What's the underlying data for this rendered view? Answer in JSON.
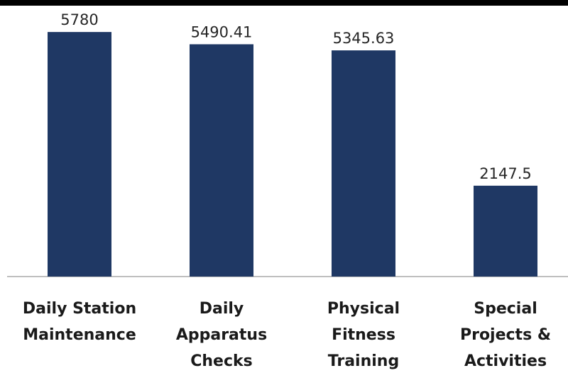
{
  "chart_data": {
    "type": "bar",
    "categories": [
      [
        "Daily Station",
        "Maintenance"
      ],
      [
        "Daily",
        "Apparatus",
        "Checks"
      ],
      [
        "Physical",
        "Fitness",
        "Training"
      ],
      [
        "Special",
        "Projects &",
        "Activities"
      ]
    ],
    "values": [
      5780,
      5490.41,
      5345.63,
      2147.5
    ],
    "value_labels": [
      "5780",
      "5490.41",
      "5345.63",
      "2147.5"
    ],
    "bar_color": "#1f3864",
    "axis_color": "#bfbfbf",
    "ylim": [
      0,
      6000
    ],
    "grid": false,
    "legend": "none"
  }
}
